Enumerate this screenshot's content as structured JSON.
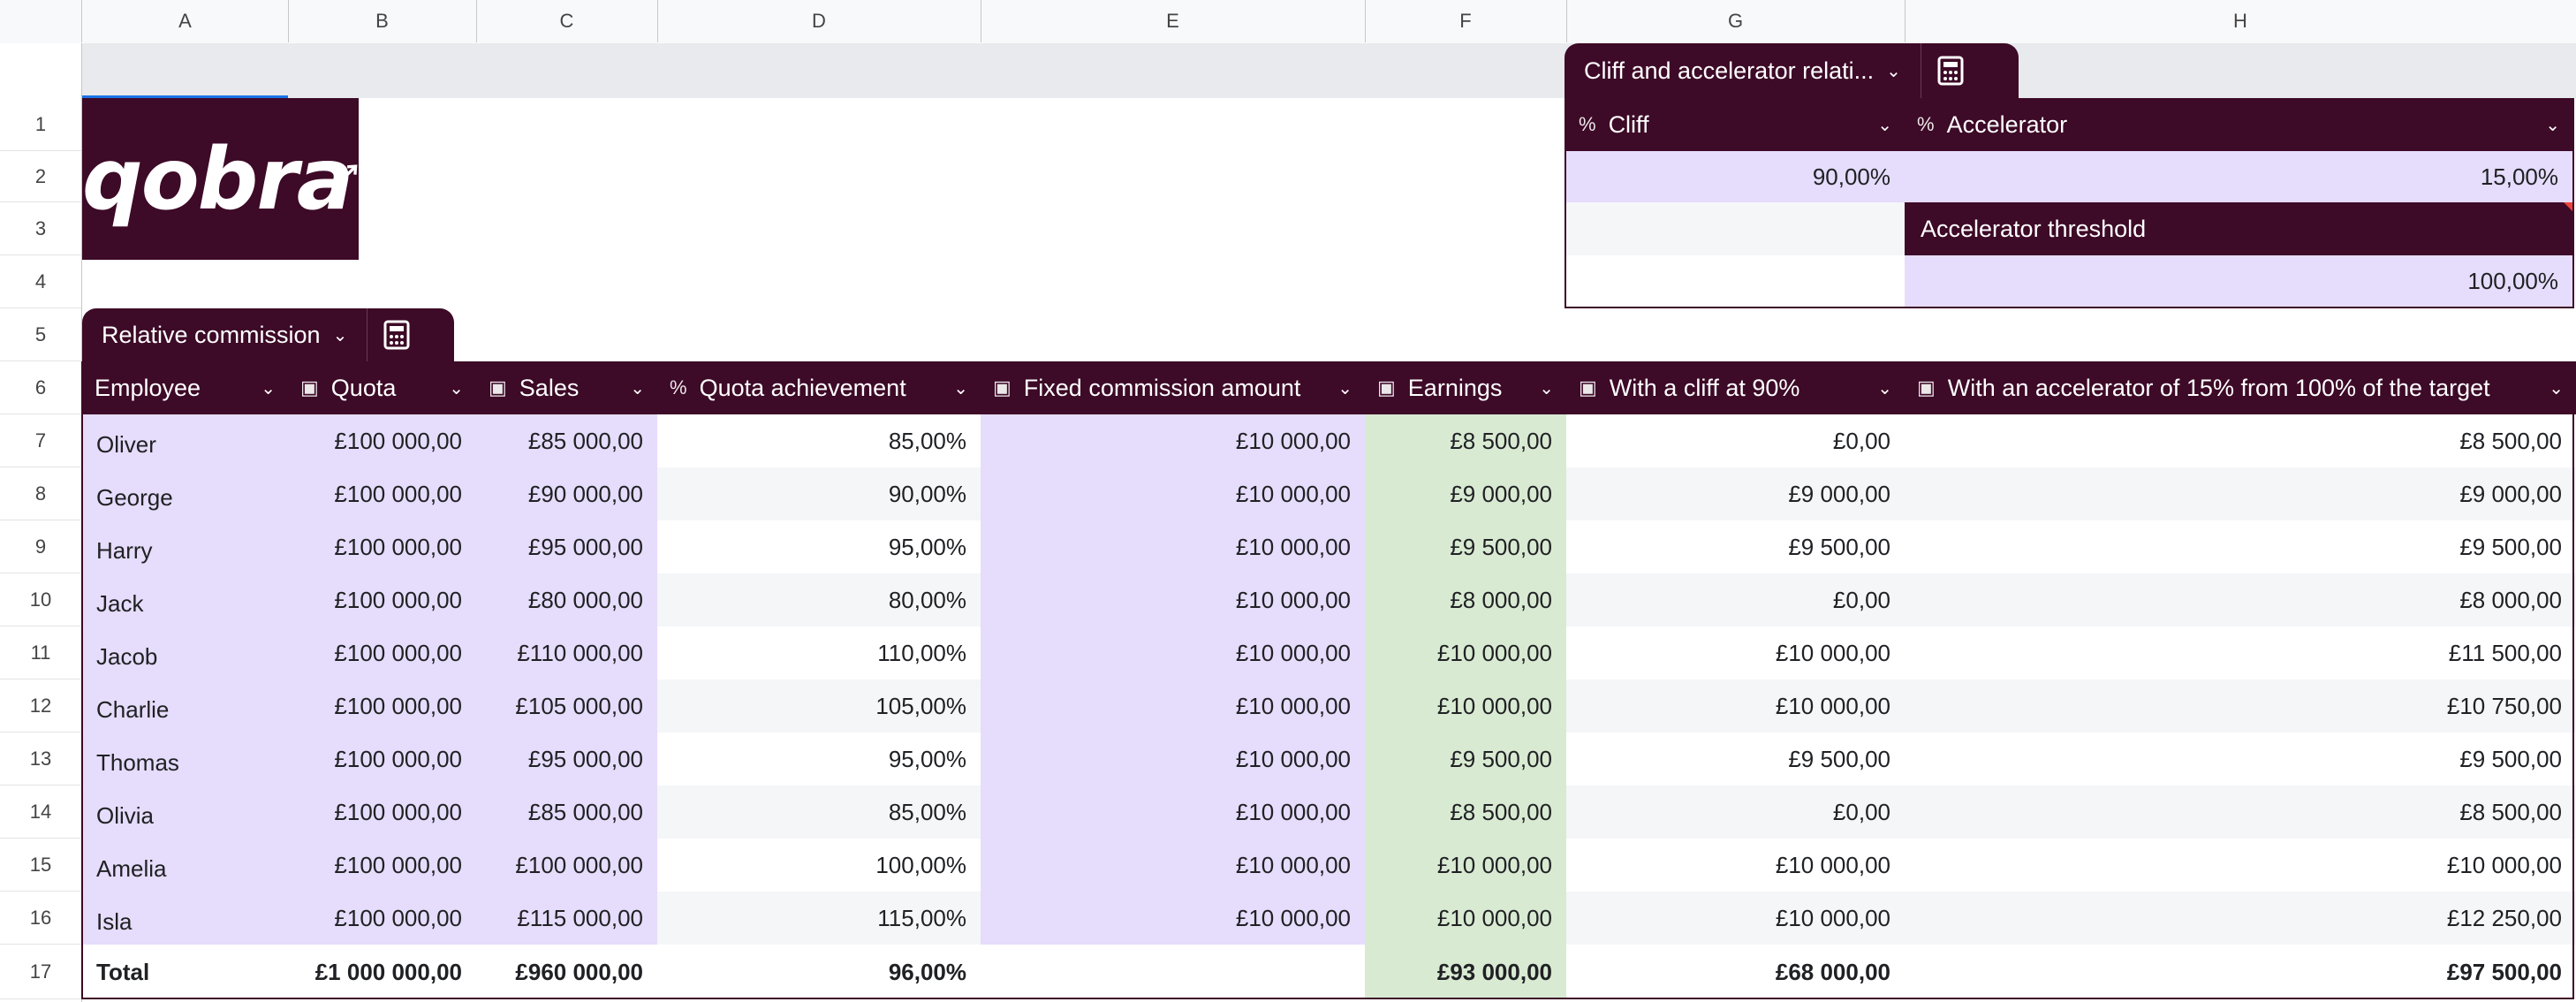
{
  "columns": [
    "A",
    "B",
    "C",
    "D",
    "E",
    "F",
    "G",
    "H"
  ],
  "rows": [
    "1",
    "2",
    "3",
    "4",
    "5",
    "6",
    "7",
    "8",
    "9",
    "10",
    "11",
    "12",
    "13",
    "14",
    "15",
    "16",
    "17"
  ],
  "logo": {
    "text": "qobra"
  },
  "cliff_table": {
    "tab_label": "Cliff and accelerator relati...",
    "headers": {
      "cliff": "Cliff",
      "accelerator": "Accelerator",
      "type_icon": "%"
    },
    "cliff_value": "90,00%",
    "accelerator_value": "15,00%",
    "threshold_label": "Accelerator threshold",
    "threshold_value": "100,00%"
  },
  "commission_table": {
    "tab_label": "Relative commission",
    "headers": [
      {
        "label": "Employee",
        "type": ""
      },
      {
        "label": "Quota",
        "type": "money"
      },
      {
        "label": "Sales",
        "type": "money"
      },
      {
        "label": "Quota achievement",
        "type": "%"
      },
      {
        "label": "Fixed commission amount",
        "type": "money"
      },
      {
        "label": "Earnings",
        "type": "money"
      },
      {
        "label": "With a cliff at 90%",
        "type": "money"
      },
      {
        "label": "With an accelerator of 15% from 100% of the target",
        "type": "money"
      }
    ],
    "rows": [
      [
        "Oliver",
        "£100 000,00",
        "£85 000,00",
        "85,00%",
        "£10 000,00",
        "£8 500,00",
        "£0,00",
        "£8 500,00"
      ],
      [
        "George",
        "£100 000,00",
        "£90 000,00",
        "90,00%",
        "£10 000,00",
        "£9 000,00",
        "£9 000,00",
        "£9 000,00"
      ],
      [
        "Harry",
        "£100 000,00",
        "£95 000,00",
        "95,00%",
        "£10 000,00",
        "£9 500,00",
        "£9 500,00",
        "£9 500,00"
      ],
      [
        "Jack",
        "£100 000,00",
        "£80 000,00",
        "80,00%",
        "£10 000,00",
        "£8 000,00",
        "£0,00",
        "£8 000,00"
      ],
      [
        "Jacob",
        "£100 000,00",
        "£110 000,00",
        "110,00%",
        "£10 000,00",
        "£10 000,00",
        "£10 000,00",
        "£11 500,00"
      ],
      [
        "Charlie",
        "£100 000,00",
        "£105 000,00",
        "105,00%",
        "£10 000,00",
        "£10 000,00",
        "£10 000,00",
        "£10 750,00"
      ],
      [
        "Thomas",
        "£100 000,00",
        "£95 000,00",
        "95,00%",
        "£10 000,00",
        "£9 500,00",
        "£9 500,00",
        "£9 500,00"
      ],
      [
        "Olivia",
        "£100 000,00",
        "£85 000,00",
        "85,00%",
        "£10 000,00",
        "£8 500,00",
        "£0,00",
        "£8 500,00"
      ],
      [
        "Amelia",
        "£100 000,00",
        "£100 000,00",
        "100,00%",
        "£10 000,00",
        "£10 000,00",
        "£10 000,00",
        "£10 000,00"
      ],
      [
        "Isla",
        "£100 000,00",
        "£115 000,00",
        "115,00%",
        "£10 000,00",
        "£10 000,00",
        "£10 000,00",
        "£12 250,00"
      ]
    ],
    "total": [
      "Total",
      "£1 000 000,00",
      "£960 000,00",
      "96,00%",
      "",
      "£93 000,00",
      "£68 000,00",
      "£97 500,00"
    ]
  },
  "colors": {
    "header_bg": "#3d0a27",
    "input_purple": "#e6dcfb",
    "earnings_green": "#d9ead3",
    "selection": "#1a73e8"
  }
}
